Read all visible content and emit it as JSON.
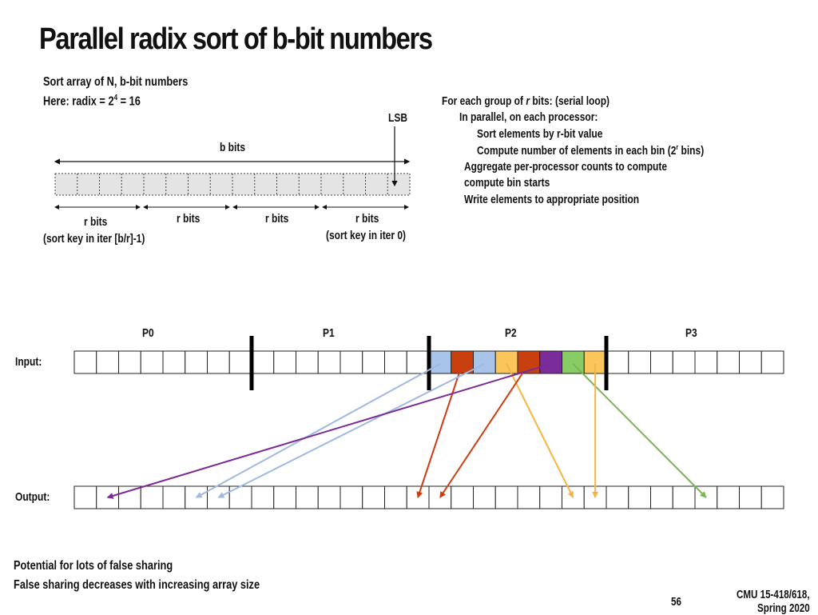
{
  "title": "Parallel radix sort of b-bit numbers",
  "intro": {
    "line1": "Sort array of N, b-bit numbers",
    "line2_prefix": "Here: radix = 2",
    "line2_sup": "4",
    "line2_suffix": " = 16"
  },
  "bits_diagram": {
    "lsb_label": "LSB",
    "b_bits_label": "b bits",
    "cell_count": 16,
    "groups": [
      {
        "label": "r bits",
        "sublabel": "(sort key in iter [b/r]-1)"
      },
      {
        "label": "r bits",
        "sublabel": ""
      },
      {
        "label": "r bits",
        "sublabel": ""
      },
      {
        "label": "r bits",
        "sublabel": "(sort key in iter 0)"
      }
    ]
  },
  "algorithm": {
    "line1_prefix": "For each group of ",
    "line1_var": "r",
    "line1_suffix": " bits:  (serial loop)",
    "line2": "In parallel, on each processor:",
    "line3": "Sort elements by r-bit value",
    "line4_prefix": "Compute number of elements in each bin (2",
    "line4_sup": "r",
    "line4_suffix": " bins)",
    "line5": "Aggregate per-processor counts to compute",
    "line6": "compute bin starts",
    "line7": "Write elements to appropriate position"
  },
  "processors": [
    "P0",
    "P1",
    "P2",
    "P3"
  ],
  "input_label": "Input:",
  "output_label": "Output:",
  "cell_count": 32,
  "colors": {
    "blue": "#a9c4eb",
    "red": "#c9400f",
    "yellow": "#fac55a",
    "purple": "#7a2c9a",
    "green": "#88cc66",
    "arrow_blue": "#9fb9e3",
    "arrow_red": "#d13a0f",
    "arrow_yellow": "#f6b443",
    "arrow_purple": "#7b2a98",
    "arrow_green": "#74b84e"
  },
  "p2_input_colors": [
    "blue",
    "red",
    "blue",
    "yellow",
    "red",
    "purple",
    "green",
    "yellow"
  ],
  "moves": [
    {
      "from": 16,
      "to": 5,
      "color": "blue"
    },
    {
      "from": 17,
      "to": 15,
      "color": "red"
    },
    {
      "from": 18,
      "to": 6,
      "color": "blue"
    },
    {
      "from": 19,
      "to": 22,
      "color": "yellow"
    },
    {
      "from": 20,
      "to": 16,
      "color": "red"
    },
    {
      "from": 21,
      "to": 1,
      "color": "purple"
    },
    {
      "from": 22,
      "to": 28,
      "color": "green"
    },
    {
      "from": 23,
      "to": 23,
      "color": "yellow"
    }
  ],
  "footer": {
    "note1": "Potential for lots of false sharing",
    "note2": "False sharing decreases with increasing array size",
    "page_number": "56",
    "course_line1": "CMU 15-418/618,",
    "course_line2": "Spring 2020"
  }
}
